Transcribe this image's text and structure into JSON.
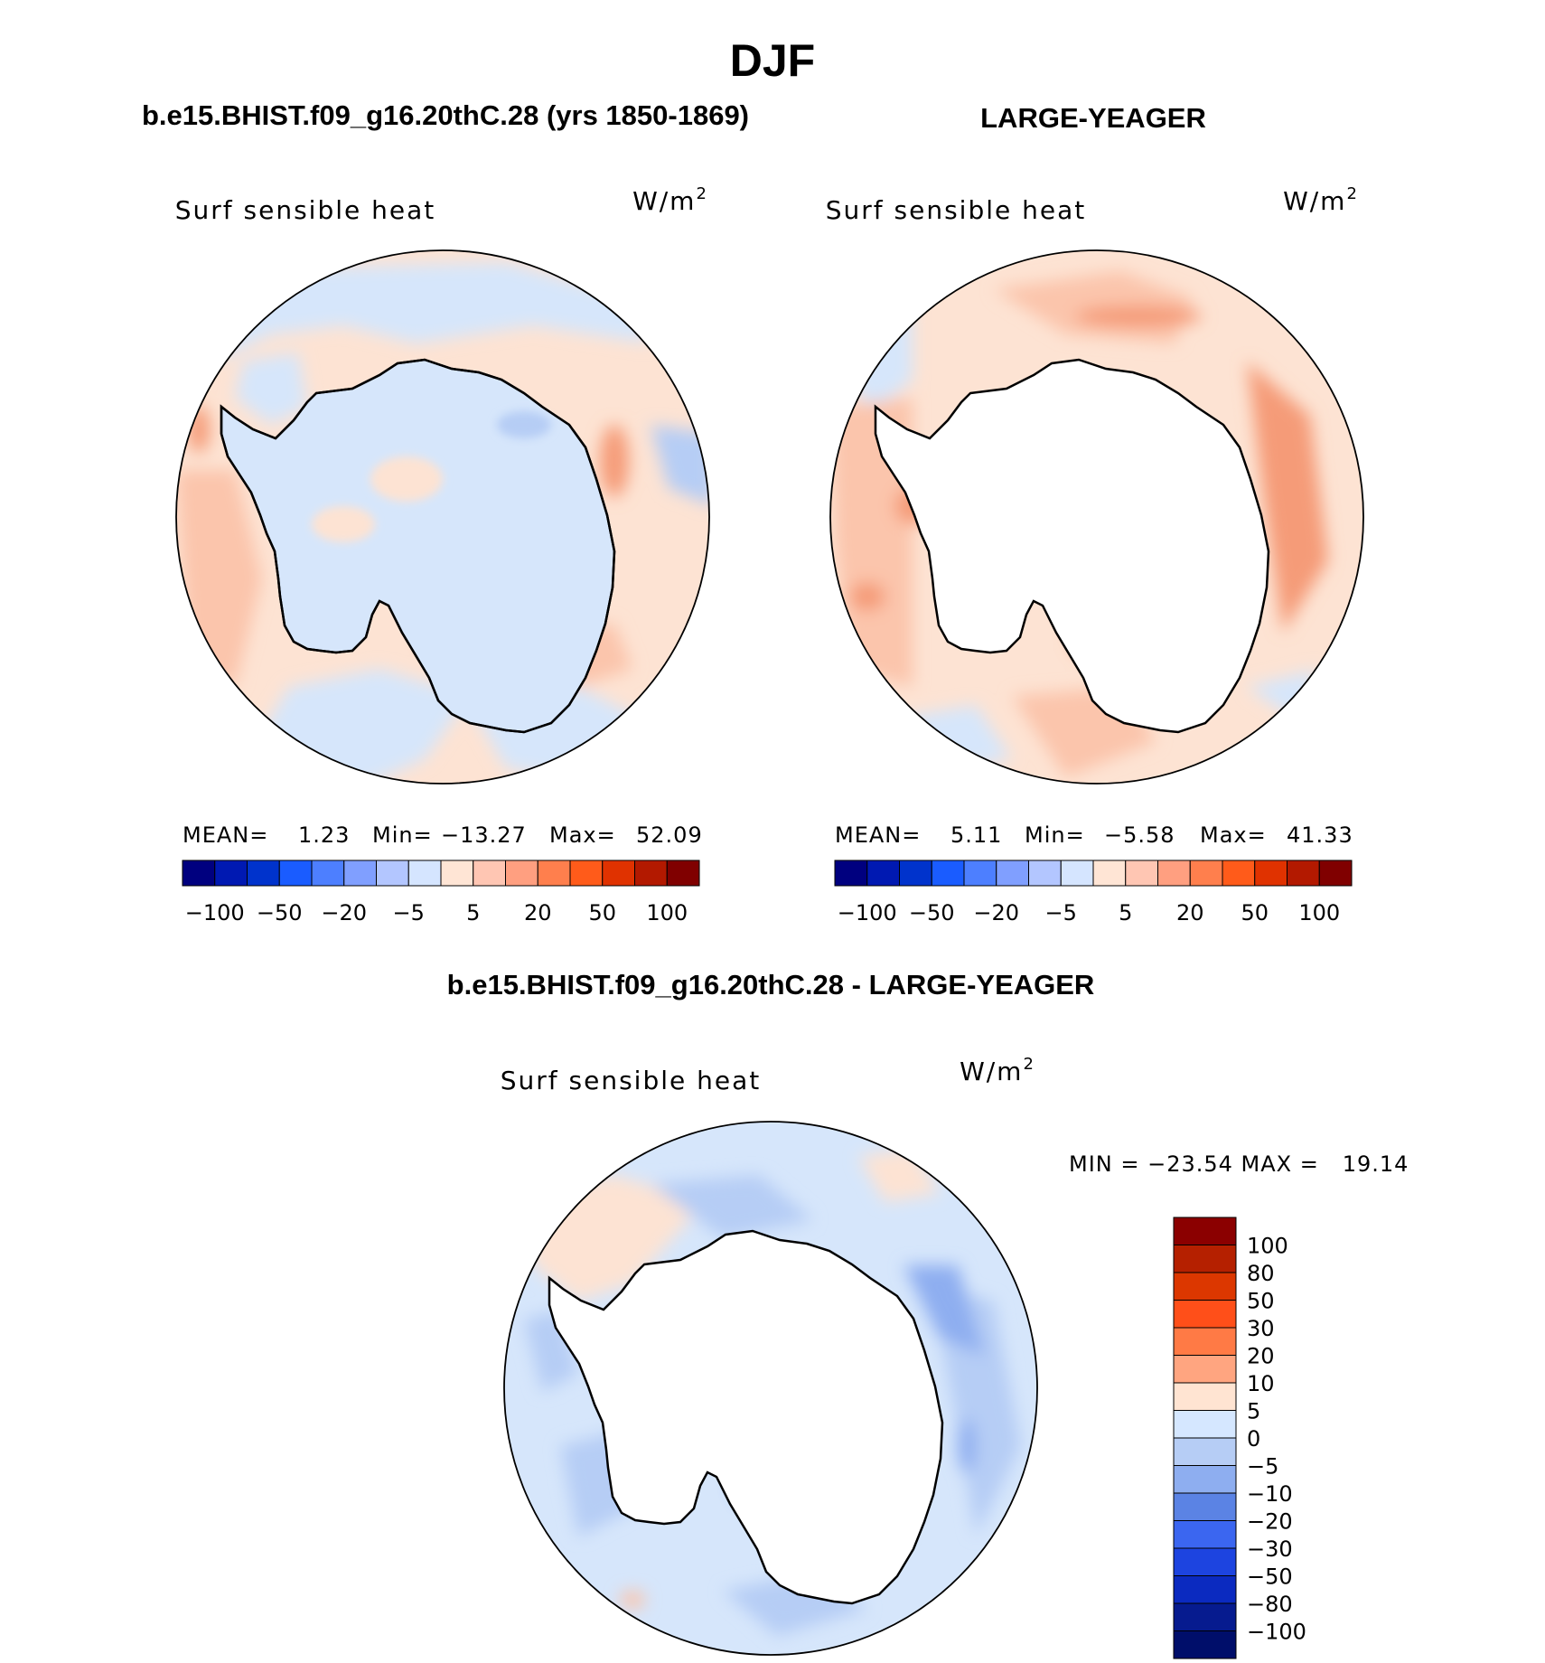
{
  "figure": {
    "title": "DJF"
  },
  "colors": {
    "diverging": [
      "#00007f",
      "#0019b2",
      "#0033cc",
      "#1a5cff",
      "#4d7fff",
      "#809fff",
      "#b3c6ff",
      "#d5e5ff",
      "#ffe5d5",
      "#ffc6b3",
      "#ff9f80",
      "#ff7f4d",
      "#ff5b1a",
      "#e03200",
      "#b31900",
      "#800000"
    ],
    "ocean_light_pos": "#fde3d3",
    "ocean_med_pos": "#fbc5ac",
    "ocean_strong_pos": "#f59b78",
    "ocean_peak_pos": "#ea5a2b",
    "ocean_light_neg": "#d6e6fb",
    "ocean_med_neg": "#b6cdf5",
    "ocean_strong_neg": "#8eaef0",
    "ocean_peak_neg": "#5b83e4",
    "land": "#ffffff",
    "outline": "#000000"
  },
  "panels": [
    {
      "id": "model",
      "heading": "b.e15.BHIST.f09_g16.20thC.28 (yrs 1850-1869)",
      "variable": "Surf sensible heat",
      "units_base": "W/m",
      "units_sup": "2",
      "stats": {
        "mean_label": "MEAN=",
        "mean": "1.23",
        "min_label": "Min=",
        "min": "−13.27",
        "max_label": "Max=",
        "max": "52.09"
      },
      "colorbar_ticks": [
        "−100",
        "−50",
        "−20",
        "−5",
        "5",
        "20",
        "50",
        "100"
      ],
      "field": "mixed"
    },
    {
      "id": "obs",
      "heading": "LARGE-YEAGER",
      "variable": "Surf sensible heat",
      "units_base": "W/m",
      "units_sup": "2",
      "stats": {
        "mean_label": "MEAN=",
        "mean": "5.11",
        "min_label": "Min=",
        "min": "−5.58",
        "max_label": "Max=",
        "max": "41.33"
      },
      "colorbar_ticks": [
        "−100",
        "−50",
        "−20",
        "−5",
        "5",
        "20",
        "50",
        "100"
      ],
      "field": "positive"
    }
  ],
  "difference": {
    "heading": "b.e15.BHIST.f09_g16.20thC.28 - LARGE-YEAGER",
    "variable": "Surf sensible heat",
    "units_base": "W/m",
    "units_sup": "2",
    "minmax_label": "MIN = −23.54 MAX =   19.14",
    "colorbar_labels": [
      "100",
      "80",
      "50",
      "30",
      "20",
      "10",
      "5",
      "0",
      "−5",
      "−10",
      "−20",
      "−30",
      "−50",
      "−80",
      "−100"
    ],
    "colorbar_colors": [
      "#8b0000",
      "#b52000",
      "#dc3700",
      "#ff4f19",
      "#ff7a45",
      "#ffa580",
      "#ffe4d2",
      "#d5e7ff",
      "#b6cdf5",
      "#8eaef0",
      "#5b83e4",
      "#3b66f0",
      "#1d44e0",
      "#0b2ac0",
      "#061b8f",
      "#000e6a"
    ],
    "field": "negative"
  }
}
